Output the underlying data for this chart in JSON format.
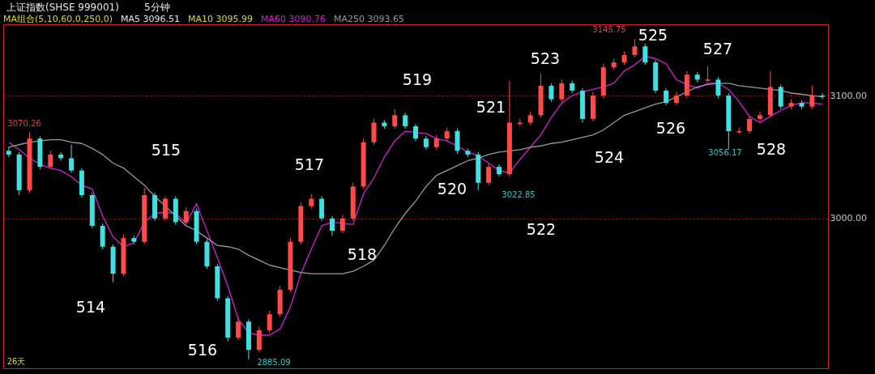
{
  "chart_data": {
    "type": "candlestick",
    "title": "上证指数(SHSE 999001)",
    "subtitle": "5分钟",
    "categories": [
      null,
      null,
      null,
      null,
      null,
      null,
      null,
      null,
      null,
      null,
      null,
      null,
      null,
      null,
      null,
      null,
      null,
      null,
      null,
      null,
      null,
      null,
      null,
      null,
      null,
      null,
      null,
      null,
      null,
      null,
      null,
      null,
      null,
      null,
      null,
      null,
      null,
      null,
      null,
      null,
      null,
      null,
      null,
      null,
      null,
      null,
      null,
      null,
      null,
      null,
      null,
      null,
      null,
      null,
      null,
      null,
      null,
      null,
      null,
      null,
      null,
      null,
      null,
      null,
      null,
      null,
      null,
      null,
      null,
      null,
      null,
      null,
      null,
      null,
      null,
      null,
      null,
      null,
      null
    ],
    "ohlc": [
      [
        3055,
        3058,
        3050,
        3052
      ],
      [
        3052,
        3054,
        3019,
        3023
      ],
      [
        3023,
        3070.26,
        3021,
        3065
      ],
      [
        3065,
        3067,
        3040,
        3042
      ],
      [
        3042,
        3055,
        3040,
        3052
      ],
      [
        3052,
        3054,
        3047,
        3049
      ],
      [
        3049,
        3060,
        3037,
        3039
      ],
      [
        3039,
        3041,
        3017,
        3019
      ],
      [
        3019,
        3021,
        2992,
        2994
      ],
      [
        2994,
        2996,
        2975,
        2977
      ],
      [
        2977,
        2979,
        2948,
        2955
      ],
      [
        2955,
        2987,
        2953,
        2984
      ],
      [
        2984,
        2986,
        2979,
        2981
      ],
      [
        2981,
        3025,
        2979,
        3019
      ],
      [
        3019,
        3021,
        2998,
        3000
      ],
      [
        3000,
        3018,
        2998,
        3016
      ],
      [
        3016,
        3018,
        2995,
        2997
      ],
      [
        2997,
        3009,
        2995,
        3006
      ],
      [
        3006,
        3008,
        2979,
        2981
      ],
      [
        2981,
        2983,
        2959,
        2961
      ],
      [
        2961,
        2963,
        2933,
        2935
      ],
      [
        2935,
        2937,
        2900,
        2903
      ],
      [
        2903,
        2920,
        2901,
        2916
      ],
      [
        2916,
        2918,
        2885.09,
        2893
      ],
      [
        2893,
        2912,
        2891,
        2909
      ],
      [
        2909,
        2925,
        2907,
        2922
      ],
      [
        2922,
        2945,
        2920,
        2942
      ],
      [
        2942,
        2984,
        2940,
        2981
      ],
      [
        2981,
        3013,
        2979,
        3010
      ],
      [
        3010,
        3020,
        3008,
        3016
      ],
      [
        3016,
        3018,
        2998,
        3000
      ],
      [
        3000,
        3002,
        2986,
        2990
      ],
      [
        2990,
        3003,
        2988,
        3000
      ],
      [
        3000,
        3029,
        2998,
        3026
      ],
      [
        3026,
        3065,
        3024,
        3062
      ],
      [
        3062,
        3081,
        3060,
        3078
      ],
      [
        3078,
        3080,
        3073,
        3075
      ],
      [
        3075,
        3089,
        3073,
        3084
      ],
      [
        3084,
        3086,
        3073,
        3075
      ],
      [
        3075,
        3077,
        3063,
        3065
      ],
      [
        3065,
        3067,
        3056,
        3058
      ],
      [
        3058,
        3068,
        3056,
        3065
      ],
      [
        3065,
        3074,
        3063,
        3071
      ],
      [
        3071,
        3073,
        3053,
        3055
      ],
      [
        3055,
        3057,
        3050,
        3052
      ],
      [
        3052,
        3054,
        3022.85,
        3029
      ],
      [
        3029,
        3045,
        3027,
        3042
      ],
      [
        3042,
        3044,
        3034,
        3036
      ],
      [
        3036,
        3112,
        3034,
        3078
      ],
      [
        3077,
        3081,
        3075,
        3078
      ],
      [
        3078,
        3087,
        3076,
        3084
      ],
      [
        3084,
        3118,
        3082,
        3108
      ],
      [
        3108,
        3110,
        3095,
        3097
      ],
      [
        3097,
        3113,
        3095,
        3110
      ],
      [
        3110,
        3112,
        3102,
        3104
      ],
      [
        3104,
        3106,
        3078,
        3081
      ],
      [
        3081,
        3103,
        3079,
        3100
      ],
      [
        3100,
        3126,
        3098,
        3123
      ],
      [
        3123,
        3130,
        3121,
        3127
      ],
      [
        3127,
        3136,
        3125,
        3133
      ],
      [
        3133,
        3145.75,
        3131,
        3140
      ],
      [
        3140,
        3142,
        3125,
        3127
      ],
      [
        3127,
        3129,
        3102,
        3104
      ],
      [
        3104,
        3106,
        3092,
        3094
      ],
      [
        3094,
        3103,
        3092,
        3100
      ],
      [
        3100,
        3120,
        3098,
        3117
      ],
      [
        3117,
        3119,
        3111,
        3113
      ],
      [
        3112,
        3124,
        3111,
        3113
      ],
      [
        3113,
        3115,
        3098,
        3100
      ],
      [
        3100,
        3102,
        3056.17,
        3071
      ],
      [
        3070,
        3074,
        3069,
        3071
      ],
      [
        3071,
        3084,
        3069,
        3081
      ],
      [
        3081,
        3087,
        3079,
        3084
      ],
      [
        3084,
        3120,
        3082,
        3107
      ],
      [
        3107,
        3109,
        3089,
        3091
      ],
      [
        3091,
        3097,
        3089,
        3094
      ],
      [
        3094,
        3096,
        3089,
        3091
      ],
      [
        3091,
        3108,
        3089,
        3100
      ],
      [
        3100,
        3102,
        3097,
        3099
      ]
    ],
    "series": [
      {
        "name": "MA60 3090.76",
        "type": "line",
        "color": "#d020d0",
        "values": [
          3062,
          3056,
          3049,
          3044,
          3041,
          3039,
          3034,
          3027,
          3024,
          3002,
          2985,
          2977,
          2980,
          2997,
          3004,
          3005,
          3004,
          2996,
          3012,
          2990,
          2968,
          2945,
          2918,
          2907,
          2905,
          2905,
          2910,
          2928,
          2955,
          2975,
          2994,
          2997,
          2996,
          2995,
          3020,
          3033,
          3050,
          3063,
          3071,
          3070,
          3069,
          3065,
          3063,
          3059,
          3054,
          3051,
          3045,
          3039,
          3037,
          3048,
          3058,
          3068,
          3082,
          3094,
          3100,
          3103,
          3105,
          3107,
          3110,
          3120,
          3125,
          3132,
          3130,
          3126,
          3113,
          3109,
          3106,
          3110,
          3110,
          3105,
          3095,
          3083,
          3078,
          3083,
          3088,
          3092,
          3094,
          3094,
          3093
        ]
      },
      {
        "name": "MA250 3093.65",
        "type": "line",
        "color": "#9a9a9a",
        "values": [
          3058,
          3060,
          3062,
          3063,
          3064,
          3064,
          3062,
          3061,
          3057,
          3052,
          3045,
          3041,
          3034,
          3027,
          3018,
          3010,
          3002,
          2994,
          2990,
          2984,
          2978,
          2977,
          2975,
          2970,
          2966,
          2962,
          2960,
          2958,
          2956,
          2955,
          2955,
          2955,
          2955,
          2957,
          2961,
          2966,
          2978,
          2992,
          3004,
          3014,
          3026,
          3035,
          3039,
          3043,
          3047,
          3049,
          3052,
          3054,
          3055,
          3056,
          3058,
          3059,
          3061,
          3062,
          3064,
          3066,
          3068,
          3072,
          3078,
          3084,
          3087,
          3090,
          3093,
          3095,
          3099,
          3103,
          3107,
          3109,
          3110,
          3110,
          3108,
          3107,
          3106,
          3105,
          3104,
          3102,
          3101,
          3100,
          3099
        ]
      }
    ],
    "ylim": [
      2878,
      3158
    ],
    "yticks": [
      {
        "value": 3100,
        "label": "3100.00"
      },
      {
        "value": 3000,
        "label": "3000.00"
      }
    ],
    "grid": "y",
    "legend": "top left",
    "tick_labels": "y",
    "annotations": [
      "MA组合(5,10,60,0,250,0)",
      "MA5 3096.51",
      "MA10 3095.99",
      "514",
      "515",
      "516",
      "517",
      "518",
      "519",
      "520",
      "521",
      "522",
      "523",
      "524",
      "525",
      "526",
      "527",
      "528",
      "3070.26",
      "2885.09",
      "3022.85",
      "3145.75",
      "3056.17",
      "26天"
    ]
  }
}
